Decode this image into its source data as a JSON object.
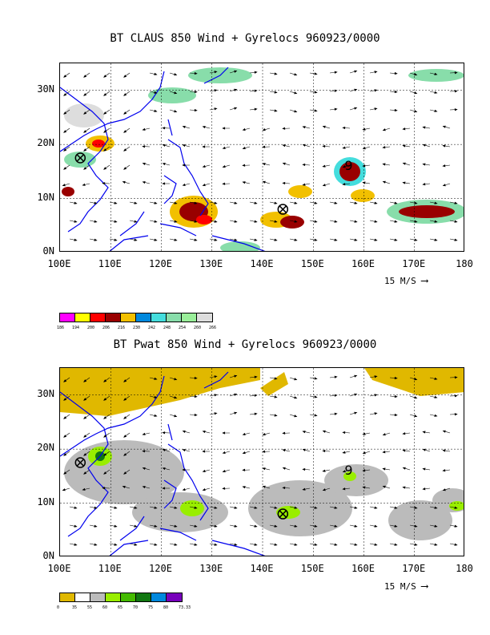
{
  "panels": [
    {
      "title": "BT CLAUS 850 Wind + Gyrelocs 960923/0000",
      "y_labels": [
        "30N",
        "20N",
        "10N",
        "0N"
      ],
      "x_labels": [
        "100E",
        "110E",
        "120E",
        "130E",
        "140E",
        "150E",
        "160E",
        "170E",
        "180"
      ],
      "scale_label": "15 M/S",
      "legend_colors": [
        "#ff00ff",
        "#ffff00",
        "#ff0000",
        "#990000",
        "#f2c000",
        "#0088dd",
        "#44dddd",
        "#88ddaa",
        "#99ee99",
        "#dddddd"
      ],
      "legend_ticks": [
        "186",
        "194",
        "200",
        "206",
        "216",
        "230",
        "242",
        "248",
        "254",
        "260",
        "266"
      ],
      "gyre_markers": [
        {
          "lon": 104,
          "lat": 17.5
        },
        {
          "lon": 144,
          "lat": 8
        }
      ],
      "typhoon_marker": {
        "lon": 157,
        "lat": 16,
        "label": "9"
      }
    },
    {
      "title": "BT Pwat 850 Wind + Gyrelocs 960923/0000",
      "y_labels": [
        "30N",
        "20N",
        "10N",
        "0N"
      ],
      "x_labels": [
        "100E",
        "110E",
        "120E",
        "130E",
        "140E",
        "150E",
        "160E",
        "170E",
        "180"
      ],
      "scale_label": "15 M/S",
      "legend_colors": [
        "#e0b800",
        "#ffffff",
        "#bbbbbb",
        "#99ee00",
        "#44bb00",
        "#117711",
        "#0088dd",
        "#7700bb"
      ],
      "legend_ticks": [
        "0",
        "35",
        "55",
        "60",
        "65",
        "70",
        "75",
        "80",
        "73.33"
      ],
      "gyre_markers": [
        {
          "lon": 104,
          "lat": 17.5
        },
        {
          "lon": 144,
          "lat": 8
        }
      ],
      "typhoon_marker": {
        "lon": 157,
        "lat": 16,
        "label": "9"
      }
    }
  ]
}
